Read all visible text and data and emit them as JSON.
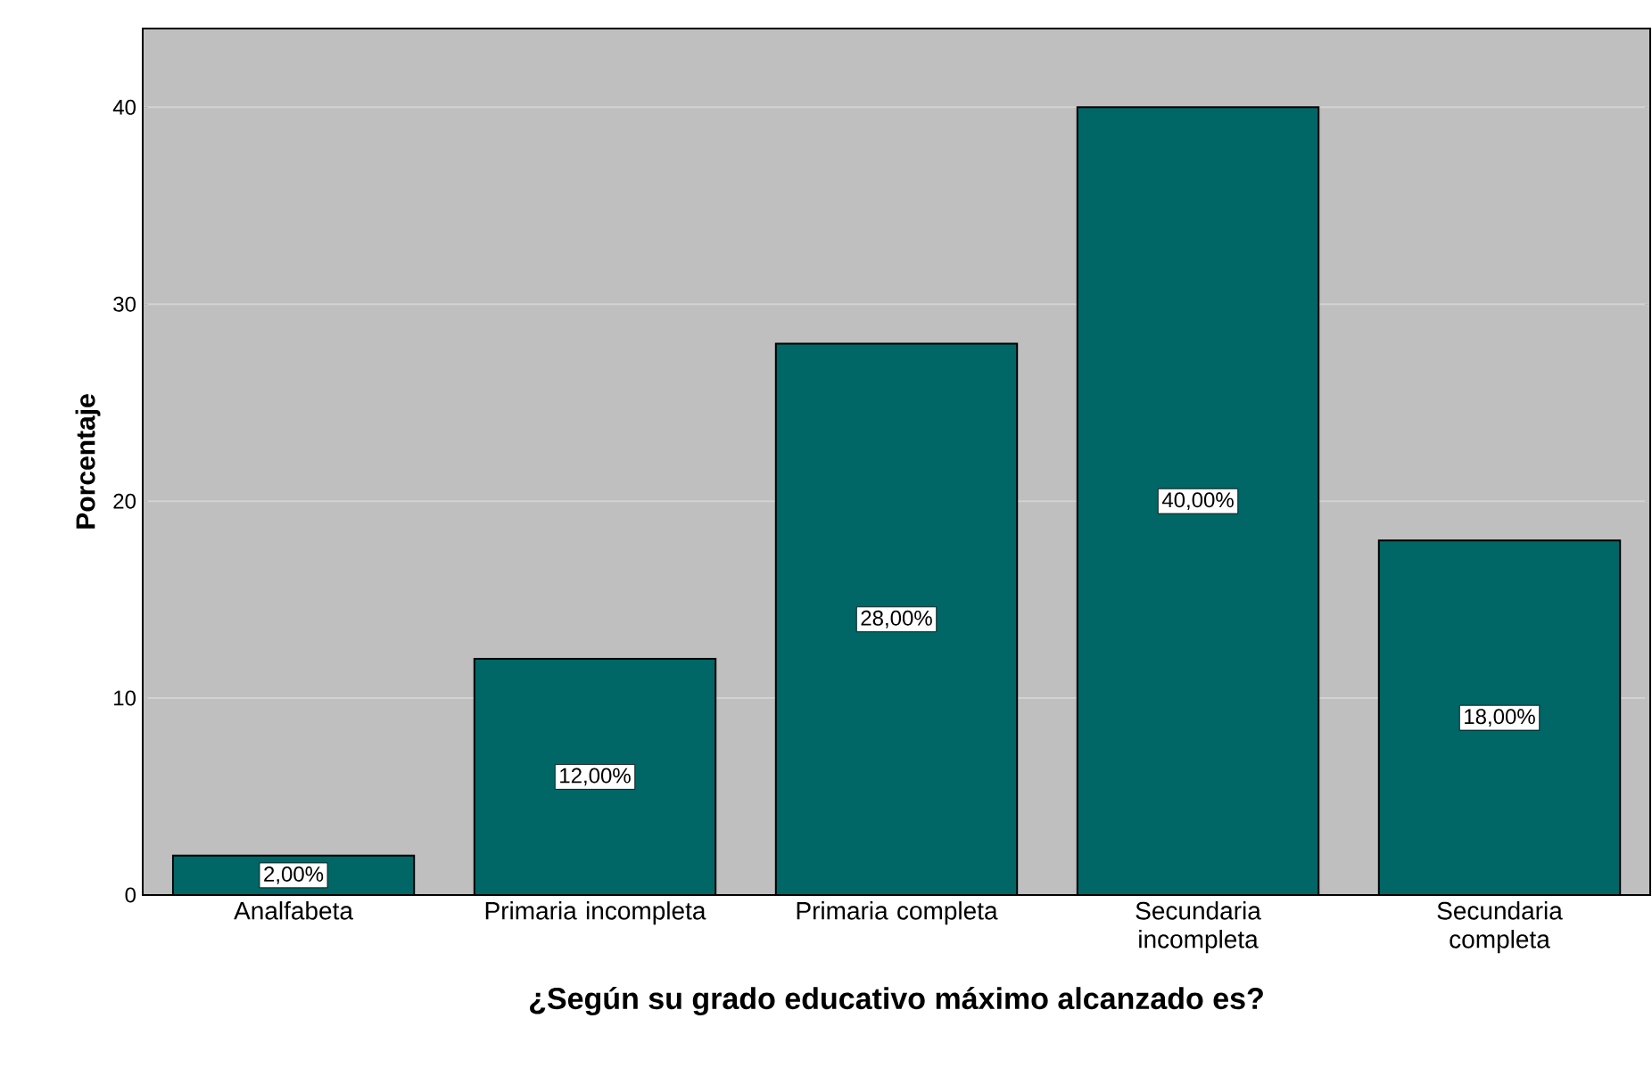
{
  "chart_data": {
    "type": "bar",
    "xlabel": "¿Según su grado educativo máximo alcanzado es?",
    "ylabel": "Porcentaje",
    "categories": [
      "Analfabeta",
      "Primaria incompleta",
      "Primaria completa",
      "Secundaria incompleta",
      "Secundaria completa"
    ],
    "values": [
      2,
      12,
      28,
      40,
      18
    ],
    "value_labels": [
      "2,00%",
      "12,00%",
      "28,00%",
      "40,00%",
      "18,00%"
    ],
    "color": "#006666",
    "ylim": [
      0,
      44
    ],
    "yticks": [
      0,
      10,
      20,
      30,
      40
    ],
    "grid": "y"
  }
}
